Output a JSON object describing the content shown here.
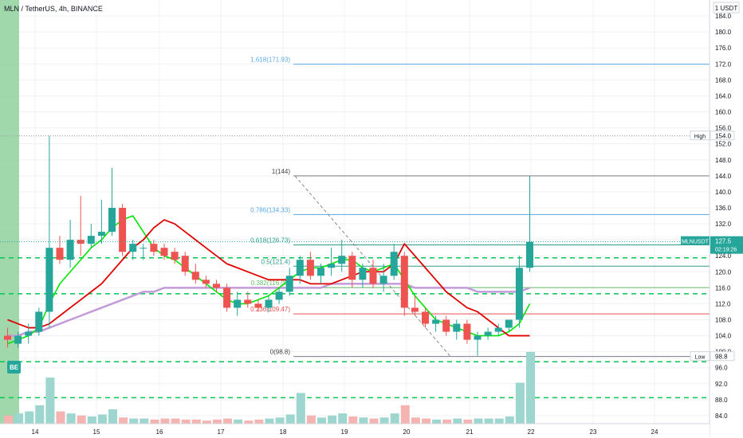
{
  "header": {
    "title": "MLN / TetherUS, 4h, BINANCE"
  },
  "colors": {
    "up": "#26a69a",
    "down": "#ef5350",
    "ma_green": "#00e600",
    "ma_red": "#e00000",
    "ma_purple": "#c29bd8",
    "fib": "#2a9d8f",
    "fib_blue": "#5aa9e6",
    "dash": "#00c853",
    "grid": "#eef0f3"
  },
  "chart_data": {
    "type": "candlestick",
    "symbol": "MLNUSDT",
    "price_axis": {
      "unit_label": "1 USDT",
      "ticks": [
        184.0,
        180.0,
        176.0,
        172.0,
        168.0,
        164.0,
        160.0,
        156.0,
        152.0,
        148.0,
        144.0,
        140.0,
        136.0,
        132.0,
        128.0,
        124.0,
        120.0,
        116.0,
        112.0,
        108.0,
        104.0,
        100.0,
        96.0,
        92.0,
        88.0,
        84.0
      ],
      "range": [
        82.0,
        188.0
      ]
    },
    "time_axis": {
      "labels": [
        "14",
        "15",
        "16",
        "17",
        "18",
        "19",
        "20",
        "21",
        "22",
        "23",
        "24"
      ]
    },
    "last_price": {
      "label": "MLNUSDT",
      "value": "127.5",
      "countdown": "02:19:26"
    },
    "high_marker": {
      "label": "High",
      "value": "154.0"
    },
    "low_marker": {
      "label": "Low",
      "value": "98.8"
    },
    "fib_levels": [
      {
        "label": "1.618(171.93)",
        "price": 171.93
      },
      {
        "label": "1(144)",
        "price": 144.0
      },
      {
        "label": "0.786(134.33)",
        "price": 134.33
      },
      {
        "label": "0.618(126.73)",
        "price": 126.73
      },
      {
        "label": "0.5(121.4)",
        "price": 121.4
      },
      {
        "label": "0.382(116.05)",
        "price": 116.05
      },
      {
        "label": "0.236(109.47)",
        "price": 109.47
      },
      {
        "label": "0(98.8)",
        "price": 98.8
      }
    ],
    "horizontal_lines": [
      123.5,
      114.5,
      97.5,
      88.5
    ],
    "candles": [
      {
        "o": 104,
        "h": 106,
        "l": 101,
        "c": 103
      },
      {
        "o": 102,
        "h": 105,
        "l": 101,
        "c": 104
      },
      {
        "o": 104,
        "h": 107,
        "l": 102,
        "c": 105
      },
      {
        "o": 105,
        "h": 111,
        "l": 104,
        "c": 110
      },
      {
        "o": 110,
        "h": 154,
        "l": 106,
        "c": 126
      },
      {
        "o": 126,
        "h": 129,
        "l": 122,
        "c": 123
      },
      {
        "o": 123,
        "h": 133,
        "l": 121,
        "c": 128
      },
      {
        "o": 128,
        "h": 139,
        "l": 124,
        "c": 127
      },
      {
        "o": 127,
        "h": 132,
        "l": 126,
        "c": 129
      },
      {
        "o": 129,
        "h": 138,
        "l": 127,
        "c": 130
      },
      {
        "o": 130,
        "h": 146,
        "l": 129,
        "c": 136
      },
      {
        "o": 136,
        "h": 137,
        "l": 124,
        "c": 125
      },
      {
        "o": 125,
        "h": 128,
        "l": 123,
        "c": 127
      },
      {
        "o": 126,
        "h": 127,
        "l": 123,
        "c": 126
      },
      {
        "o": 127,
        "h": 128,
        "l": 124,
        "c": 125
      },
      {
        "o": 126,
        "h": 127,
        "l": 123,
        "c": 124
      },
      {
        "o": 125,
        "h": 126,
        "l": 122,
        "c": 123
      },
      {
        "o": 124,
        "h": 125,
        "l": 119,
        "c": 120
      },
      {
        "o": 120,
        "h": 122,
        "l": 117,
        "c": 118
      },
      {
        "o": 118,
        "h": 119,
        "l": 116,
        "c": 117
      },
      {
        "o": 117,
        "h": 118,
        "l": 115,
        "c": 116
      },
      {
        "o": 116,
        "h": 117,
        "l": 110,
        "c": 111
      },
      {
        "o": 111,
        "h": 115,
        "l": 109,
        "c": 113
      },
      {
        "o": 113,
        "h": 115,
        "l": 111,
        "c": 112
      },
      {
        "o": 112,
        "h": 113,
        "l": 110,
        "c": 111
      },
      {
        "o": 111,
        "h": 114,
        "l": 110,
        "c": 113
      },
      {
        "o": 113,
        "h": 116,
        "l": 112,
        "c": 115
      },
      {
        "o": 115,
        "h": 121,
        "l": 114,
        "c": 119
      },
      {
        "o": 119,
        "h": 124,
        "l": 117,
        "c": 123
      },
      {
        "o": 123,
        "h": 125,
        "l": 118,
        "c": 119
      },
      {
        "o": 119,
        "h": 122,
        "l": 117,
        "c": 121
      },
      {
        "o": 121,
        "h": 126,
        "l": 119,
        "c": 122
      },
      {
        "o": 122,
        "h": 128,
        "l": 120,
        "c": 124
      },
      {
        "o": 124,
        "h": 125,
        "l": 116,
        "c": 118
      },
      {
        "o": 118,
        "h": 122,
        "l": 116,
        "c": 121
      },
      {
        "o": 121,
        "h": 123,
        "l": 116,
        "c": 117
      },
      {
        "o": 117,
        "h": 122,
        "l": 115,
        "c": 119
      },
      {
        "o": 119,
        "h": 127,
        "l": 118,
        "c": 125
      },
      {
        "o": 124,
        "h": 125,
        "l": 109,
        "c": 111
      },
      {
        "o": 111,
        "h": 114,
        "l": 109,
        "c": 110
      },
      {
        "o": 110,
        "h": 111,
        "l": 106,
        "c": 107
      },
      {
        "o": 107,
        "h": 109,
        "l": 105,
        "c": 108
      },
      {
        "o": 108,
        "h": 109,
        "l": 104,
        "c": 105
      },
      {
        "o": 105,
        "h": 108,
        "l": 103,
        "c": 107
      },
      {
        "o": 107,
        "h": 108,
        "l": 102,
        "c": 103
      },
      {
        "o": 103,
        "h": 105,
        "l": 99,
        "c": 104
      },
      {
        "o": 104,
        "h": 106,
        "l": 103,
        "c": 105
      },
      {
        "o": 105,
        "h": 107,
        "l": 104,
        "c": 106
      },
      {
        "o": 106,
        "h": 108,
        "l": 105,
        "c": 108
      },
      {
        "o": 108,
        "h": 124,
        "l": 106,
        "c": 121
      },
      {
        "o": 121,
        "h": 144,
        "l": 120,
        "c": 127.5
      }
    ],
    "volumes": [
      8,
      10,
      12,
      18,
      45,
      12,
      10,
      8,
      7,
      9,
      14,
      6,
      5,
      5,
      4,
      5,
      5,
      4,
      4,
      3,
      4,
      5,
      4,
      3,
      4,
      5,
      6,
      9,
      30,
      8,
      6,
      8,
      10,
      7,
      6,
      5,
      6,
      10,
      18,
      6,
      5,
      4,
      4,
      5,
      4,
      5,
      5,
      5,
      7,
      40,
      70
    ],
    "ma_green": [
      102,
      103,
      104,
      106,
      112,
      117,
      120,
      123,
      126,
      128,
      131,
      133,
      134,
      130,
      126,
      124,
      123,
      121,
      119,
      117,
      115,
      113,
      112,
      112,
      113,
      114,
      116,
      118,
      120,
      121,
      121,
      122,
      123,
      123,
      121,
      120,
      121,
      122,
      118,
      114,
      111,
      108,
      107,
      106,
      105,
      104,
      104,
      104,
      105,
      107,
      112
    ],
    "ma_red": [
      108,
      107,
      106,
      106,
      107,
      109,
      111,
      113,
      115,
      117,
      120,
      123,
      126,
      128,
      131,
      133,
      132,
      130,
      128,
      126,
      124,
      122,
      121,
      120,
      119,
      118,
      118,
      118,
      118,
      117,
      117,
      117,
      118,
      119,
      120,
      120,
      120,
      122,
      127,
      124,
      121,
      118,
      115,
      113,
      111,
      110,
      108,
      106,
      104,
      104,
      104
    ],
    "ma_purple": [
      104,
      104,
      105,
      105,
      106,
      107,
      108,
      109,
      110,
      111,
      112,
      113,
      114,
      115,
      115,
      116,
      116,
      116,
      116,
      116,
      116,
      116,
      116,
      116,
      116,
      116,
      116,
      116,
      116,
      116,
      116,
      117,
      117,
      117,
      117,
      117,
      117,
      117,
      117,
      116,
      116,
      116,
      116,
      116,
      116,
      115,
      115,
      115,
      115,
      115,
      116
    ]
  }
}
